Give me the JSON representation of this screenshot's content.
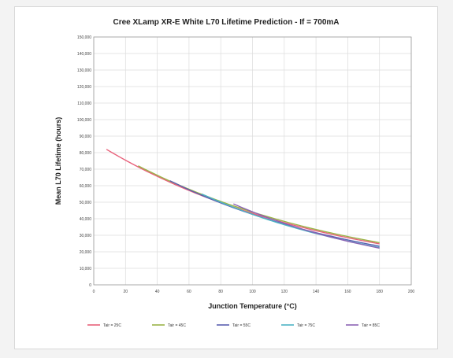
{
  "chart_data": {
    "type": "line",
    "title": "Cree XLamp XR-E White L70 Lifetime Prediction - If = 700mA",
    "xlabel": "Junction Temperature (°C)",
    "ylabel": "Mean L70 Lifetime (hours)",
    "xlim": [
      0,
      200
    ],
    "ylim": [
      0,
      150000
    ],
    "x_ticks": [
      0,
      20,
      40,
      60,
      80,
      100,
      120,
      140,
      160,
      180,
      200
    ],
    "y_ticks": [
      0,
      10000,
      20000,
      30000,
      40000,
      50000,
      60000,
      70000,
      80000,
      90000,
      100000,
      110000,
      120000,
      130000,
      140000,
      150000
    ],
    "y_tick_labels": [
      "0",
      "10,000",
      "20,000",
      "30,000",
      "40,000",
      "50,000",
      "60,000",
      "70,000",
      "80,000",
      "90,000",
      "100,000",
      "110,000",
      "120,000",
      "130,000",
      "140,000",
      "150,000"
    ],
    "grid": true,
    "legend_position": "bottom",
    "series": [
      {
        "name": "Tair = 25C",
        "color": "#e8607a",
        "x": [
          8,
          180
        ],
        "y": [
          82000,
          24800
        ]
      },
      {
        "name": "Tair = 45C",
        "color": "#9ab347",
        "x": [
          28,
          180
        ],
        "y": [
          72000,
          25500
        ]
      },
      {
        "name": "Tair = 55C",
        "color": "#5a5fb0",
        "x": [
          48,
          180
        ],
        "y": [
          63000,
          23400
        ]
      },
      {
        "name": "Tair = 75C",
        "color": "#4cb2c4",
        "x": [
          68,
          180
        ],
        "y": [
          55000,
          22600
        ]
      },
      {
        "name": "Tair = 85C",
        "color": "#8c62b4",
        "x": [
          88,
          180
        ],
        "y": [
          49000,
          22200
        ]
      }
    ]
  }
}
